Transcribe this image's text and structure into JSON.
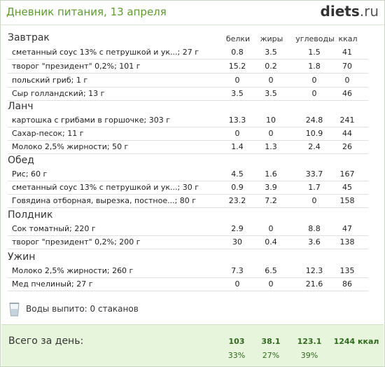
{
  "header": {
    "title": "Дневник питания, 13 апреля",
    "logo_main": "diets",
    "logo_suffix": ".ru"
  },
  "columns": {
    "protein": "белки",
    "fat": "жиры",
    "carbs": "углеводы",
    "kcal": "ккал"
  },
  "meals": [
    {
      "title": "Завтрак",
      "items": [
        {
          "name": "сметанный соус 13%  с петрушкой и ук...; 27 г",
          "p": "0.8",
          "f": "3.5",
          "c": "1.5",
          "k": "41"
        },
        {
          "name": "творог \"президент\" 0,2%; 101 г",
          "p": "15.2",
          "f": "0.2",
          "c": "1.8",
          "k": "70"
        },
        {
          "name": "польский гриб; 1 г",
          "p": "0",
          "f": "0",
          "c": "0",
          "k": "0"
        },
        {
          "name": "Сыр голландский; 13 г",
          "p": "3.5",
          "f": "3.5",
          "c": "0",
          "k": "46"
        }
      ]
    },
    {
      "title": "Ланч",
      "items": [
        {
          "name": "картошка с грибами в горшочке; 303 г",
          "p": "13.3",
          "f": "10",
          "c": "24.8",
          "k": "241"
        },
        {
          "name": "Сахар-песок; 11 г",
          "p": "0",
          "f": "0",
          "c": "10.9",
          "k": "44"
        },
        {
          "name": "Молоко 2,5% жирности; 50 г",
          "p": "1.4",
          "f": "1.3",
          "c": "2.4",
          "k": "26"
        }
      ]
    },
    {
      "title": "Обед",
      "items": [
        {
          "name": "Рис; 60 г",
          "p": "4.5",
          "f": "1.6",
          "c": "33.7",
          "k": "167"
        },
        {
          "name": "сметанный соус 13%  с петрушкой и ук...; 30 г",
          "p": "0.9",
          "f": "3.9",
          "c": "1.7",
          "k": "45"
        },
        {
          "name": "Говядина отборная, вырезка, постное...; 80 г",
          "p": "23.2",
          "f": "7.2",
          "c": "0",
          "k": "158"
        }
      ]
    },
    {
      "title": "Полдник",
      "items": [
        {
          "name": "Сок томатный; 220 г",
          "p": "2.9",
          "f": "0",
          "c": "8.8",
          "k": "47"
        },
        {
          "name": "творог \"президент\" 0,2%; 200 г",
          "p": "30",
          "f": "0.4",
          "c": "3.6",
          "k": "138"
        }
      ]
    },
    {
      "title": "Ужин",
      "items": [
        {
          "name": "Молоко 2,5% жирности; 260 г",
          "p": "7.3",
          "f": "6.5",
          "c": "12.3",
          "k": "135"
        },
        {
          "name": "Мед пчелиный; 27 г",
          "p": "0",
          "f": "0",
          "c": "21.6",
          "k": "86"
        }
      ]
    }
  ],
  "water": {
    "icon": "water-glass-icon",
    "text": "Воды выпито: 0 стаканов"
  },
  "total": {
    "label": "Всего за день:",
    "protein": "103",
    "fat": "38.1",
    "carbs": "123.1",
    "kcal": "1244 ккал",
    "protein_pct": "33%",
    "fat_pct": "27%",
    "carbs_pct": "39%"
  }
}
